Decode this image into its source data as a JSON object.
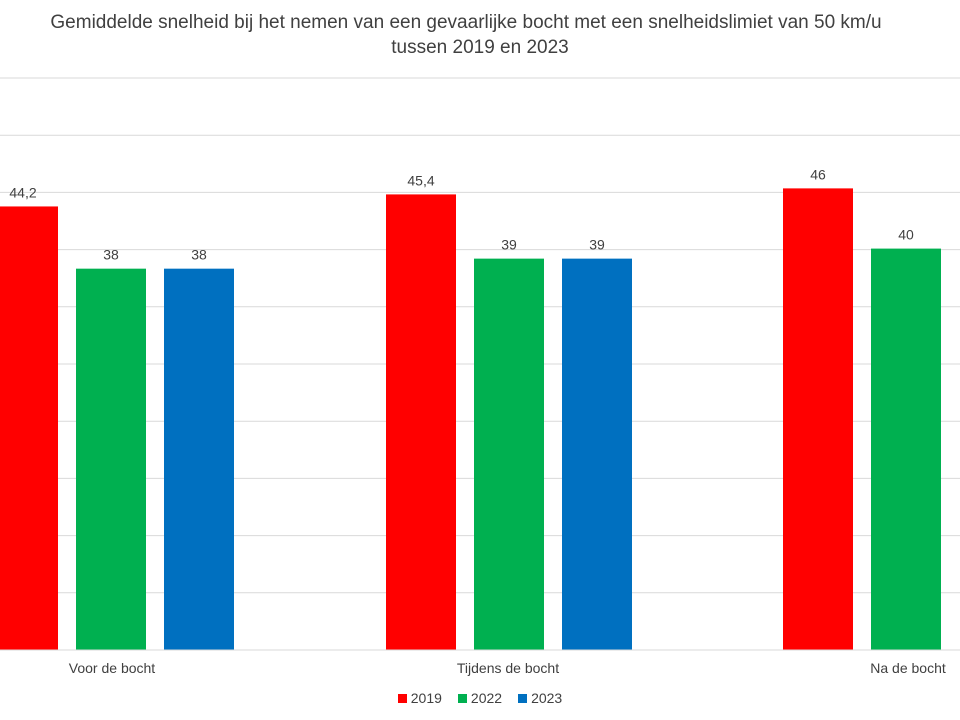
{
  "chart_data": {
    "type": "bar",
    "title_lines": [
      "Gemiddelde snelheid bij het nemen van een gevaarlijke bocht met een snelheidslimiet van 50 km/u",
      "tussen 2019 en 2023"
    ],
    "categories": [
      "Voor de bocht",
      "Tijdens de bocht",
      "Na de bocht"
    ],
    "series": [
      {
        "name": "2019",
        "color": "#ff0000",
        "values": [
          44.2,
          45.4,
          46
        ]
      },
      {
        "name": "2022",
        "color": "#00b050",
        "values": [
          38,
          39,
          40
        ]
      },
      {
        "name": "2023",
        "color": "#0070c0",
        "values": [
          38,
          39,
          null
        ]
      }
    ],
    "data_labels": [
      [
        "44,2",
        "45,4",
        "46"
      ],
      [
        "38",
        "39",
        "40"
      ],
      [
        "38",
        "39",
        ""
      ]
    ],
    "ylim": [
      0,
      57
    ],
    "grid": true,
    "legend": "bottom"
  }
}
